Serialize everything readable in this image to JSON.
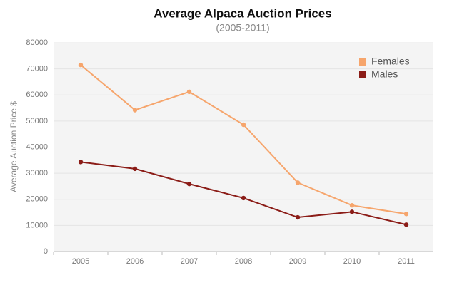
{
  "chart_data": {
    "type": "line",
    "title": "Average Alpaca Auction Prices",
    "subtitle": "(2005-2011)",
    "y_label": "Average Auction Price $",
    "categories": [
      "2005",
      "2006",
      "2007",
      "2008",
      "2009",
      "2010",
      "2011"
    ],
    "series": [
      {
        "name": "Females",
        "color": "#f6a56c",
        "values": [
          71500,
          54200,
          61200,
          48600,
          26400,
          17700,
          14400
        ]
      },
      {
        "name": "Males",
        "color": "#8b1c17",
        "values": [
          34300,
          31700,
          25900,
          20500,
          13100,
          15200,
          10300
        ]
      }
    ],
    "ylim": [
      0,
      80000
    ],
    "yticks": [
      0,
      10000,
      20000,
      30000,
      40000,
      50000,
      60000,
      70000,
      80000
    ],
    "grid": true,
    "legend": "top-right"
  }
}
